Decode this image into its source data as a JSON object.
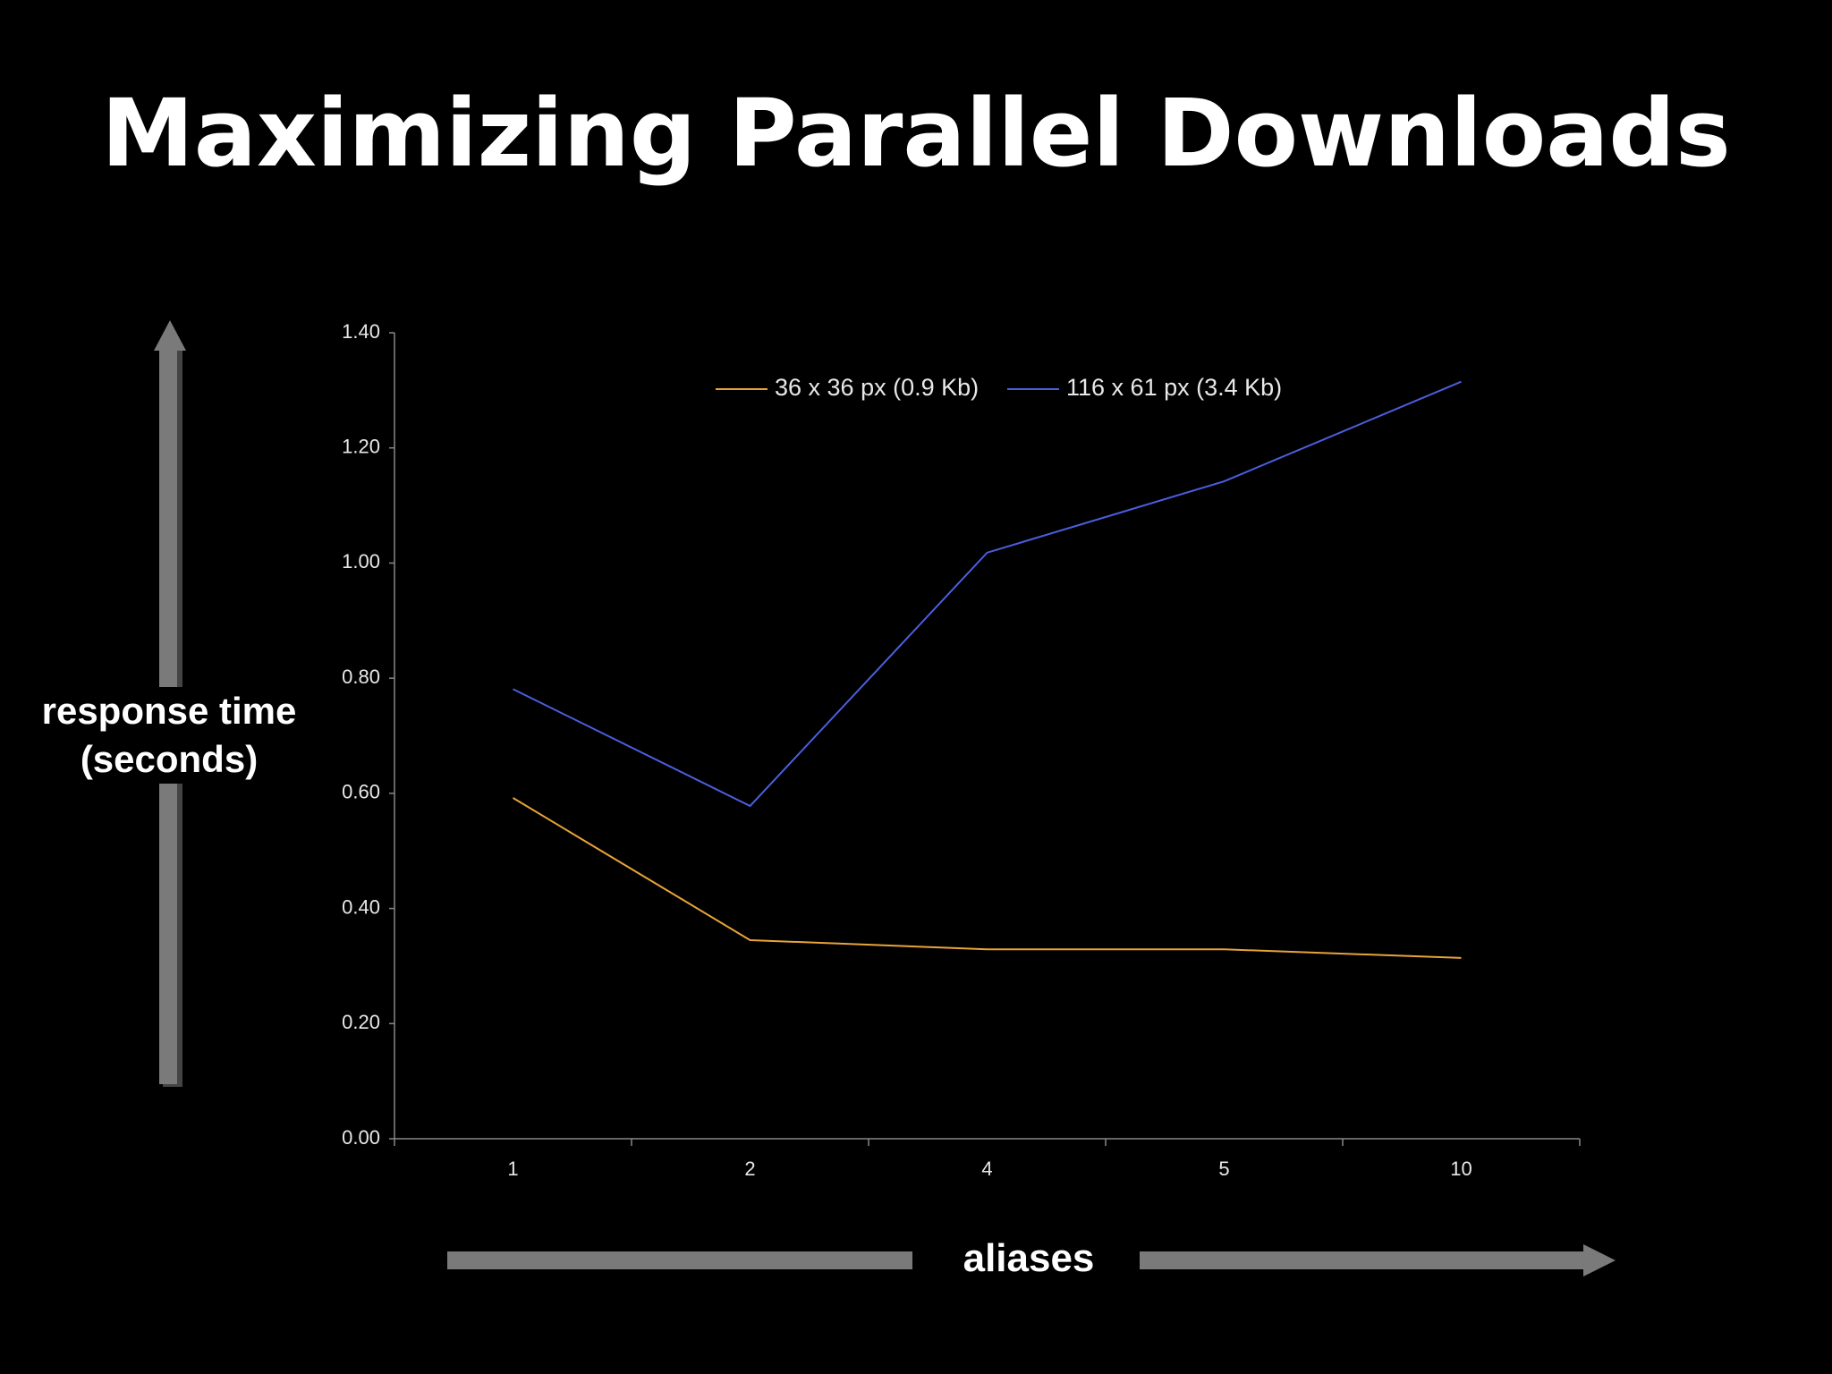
{
  "chart_data": {
    "type": "line",
    "title": "Maximizing Parallel Downloads",
    "x_label": "aliases",
    "y_label": "response time (seconds)",
    "categories": [
      "1",
      "2",
      "4",
      "5",
      "10"
    ],
    "series": [
      {
        "name": "36 x 36 px (0.9 Kb)",
        "color": "#e8a33a",
        "values": [
          0.592,
          0.345,
          0.329,
          0.329,
          0.314
        ]
      },
      {
        "name": "116 x 61 px (3.4 Kb)",
        "color": "#4a5fe0",
        "values": [
          0.781,
          0.578,
          1.018,
          1.142,
          1.315
        ]
      }
    ],
    "ylim": [
      0,
      1.4
    ],
    "yticks": [
      {
        "value": 0,
        "label": "0.00"
      },
      {
        "value": 0.2,
        "label": "0.20"
      },
      {
        "value": 0.4,
        "label": "0.40"
      },
      {
        "value": 0.6,
        "label": "0.60"
      },
      {
        "value": 0.8,
        "label": "0.80"
      },
      {
        "value": 1.0,
        "label": "1.00"
      },
      {
        "value": 1.2,
        "label": "1.20"
      },
      {
        "value": 1.4,
        "label": "1.40"
      }
    ],
    "legend": "top"
  }
}
